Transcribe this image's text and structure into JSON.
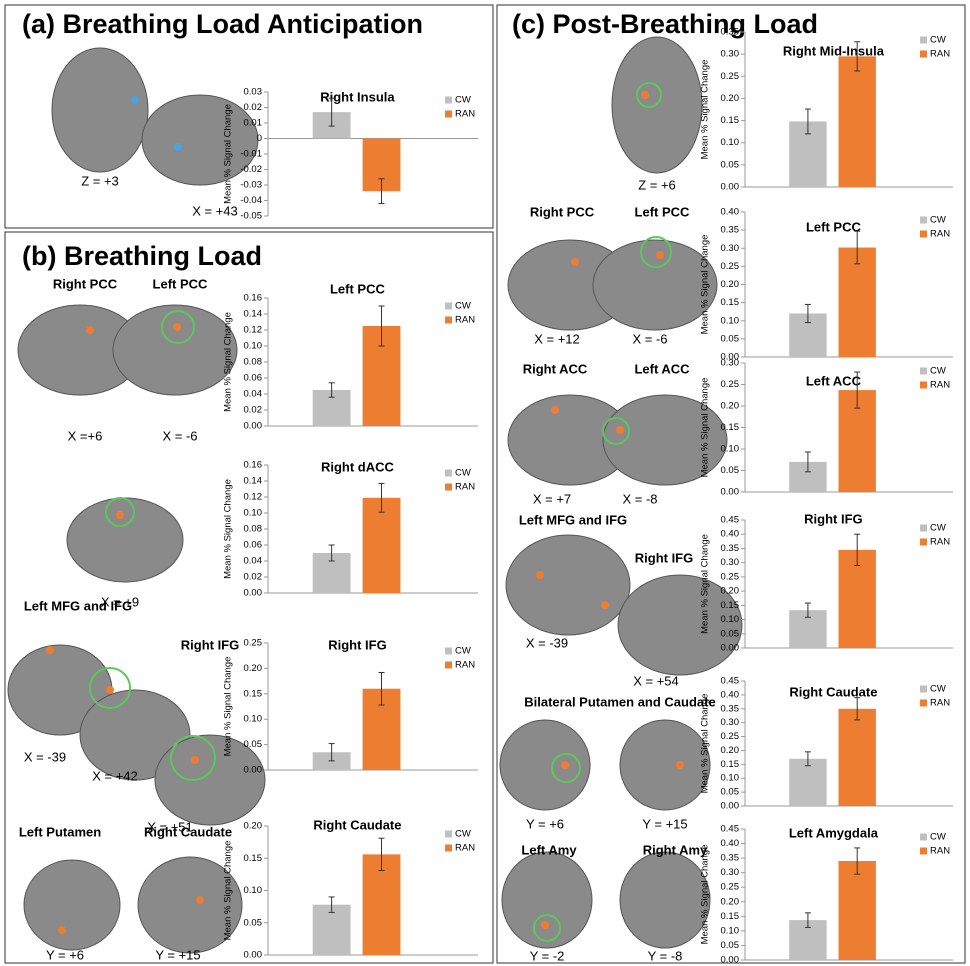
{
  "panels": [
    {
      "title": "(a) Breathing Load Anticipation",
      "image_labels": [
        "Z = +3",
        "X = +43"
      ]
    },
    {
      "title": "(b) Breathing Load",
      "image_labels": [
        "Right PCC",
        "Left PCC",
        "X =+6",
        "X = -6",
        "X = +9",
        "Left MFG and IFG",
        "Right IFG",
        "X = -39",
        "X = +42",
        "X = +51",
        "Left Putamen",
        "Right Caudate",
        "Y = +6",
        "Y = +15"
      ]
    },
    {
      "title": "(c) Post-Breathing Load",
      "image_labels": [
        "Z = +6",
        "Right PCC",
        "Left PCC",
        "X = +12",
        "X = -6",
        "Right ACC",
        "Left ACC",
        "X = +7",
        "X = -8",
        "Left MFG and IFG",
        "Right IFG",
        "X = -39",
        "X = +54",
        "Bilateral Putamen and Caudate",
        "Y = +6",
        "Y = +15",
        "Left Amy",
        "Right Amy",
        "Y = -2",
        "Y = -8"
      ]
    }
  ],
  "chart_data": [
    {
      "type": "bar",
      "title": "Right Insula",
      "ylabel": "Mean % Signal Change",
      "ylim": [
        -0.05,
        0.03
      ],
      "yticks": [
        -0.05,
        -0.04,
        -0.03,
        -0.02,
        -0.01,
        0,
        0.01,
        0.02,
        0.03
      ],
      "series": [
        {
          "name": "CW",
          "color": "#bfbfbf",
          "values": [
            0.017
          ],
          "errors": [
            0.009
          ]
        },
        {
          "name": "RAN",
          "color": "#ed7d31",
          "values": [
            -0.034
          ],
          "errors": [
            0.008
          ]
        }
      ]
    },
    {
      "type": "bar",
      "title": "Left PCC",
      "ylabel": "Mean % Signal Change",
      "ylim": [
        0,
        0.16
      ],
      "yticks": [
        {
          "value": 0,
          "label": "0.00"
        },
        0.02,
        0.04,
        0.06,
        0.08,
        {
          "value": 0.1,
          "label": "0.10"
        },
        0.12,
        0.14,
        0.16
      ],
      "series": [
        {
          "name": "CW",
          "color": "#bfbfbf",
          "values": [
            0.045
          ],
          "errors": [
            0.009
          ]
        },
        {
          "name": "RAN",
          "color": "#ed7d31",
          "values": [
            0.125
          ],
          "errors": [
            0.025
          ]
        }
      ]
    },
    {
      "type": "bar",
      "title": "Right dACC",
      "ylabel": "Mean % Signal Change",
      "ylim": [
        0,
        0.16
      ],
      "yticks": [
        {
          "value": 0,
          "label": "0.00"
        },
        0.02,
        0.04,
        0.06,
        0.08,
        {
          "value": 0.1,
          "label": "0.10"
        },
        0.12,
        0.14,
        0.16
      ],
      "series": [
        {
          "name": "CW",
          "color": "#bfbfbf",
          "values": [
            0.05
          ],
          "errors": [
            0.01
          ]
        },
        {
          "name": "RAN",
          "color": "#ed7d31",
          "values": [
            0.119
          ],
          "errors": [
            0.018
          ]
        }
      ]
    },
    {
      "type": "bar",
      "title": "Right IFG",
      "ylabel": "Mean % Signal Change",
      "ylim": [
        0,
        0.25
      ],
      "yticks": [
        {
          "value": 0,
          "label": "0.00"
        },
        0.05,
        {
          "value": 0.1,
          "label": "0.10"
        },
        0.15,
        {
          "value": 0.2,
          "label": "0.20"
        },
        0.25
      ],
      "series": [
        {
          "name": "CW",
          "color": "#bfbfbf",
          "values": [
            0.035
          ],
          "errors": [
            0.017
          ]
        },
        {
          "name": "RAN",
          "color": "#ed7d31",
          "values": [
            0.16
          ],
          "errors": [
            0.032
          ]
        }
      ]
    },
    {
      "type": "bar",
      "title": "Right Caudate",
      "ylabel": "Mean % Signal Change",
      "ylim": [
        0,
        0.2
      ],
      "yticks": [
        {
          "value": 0,
          "label": "0.00"
        },
        0.05,
        {
          "value": 0.1,
          "label": "0.10"
        },
        0.15,
        {
          "value": 0.2,
          "label": "0.20"
        }
      ],
      "series": [
        {
          "name": "CW",
          "color": "#bfbfbf",
          "values": [
            0.078
          ],
          "errors": [
            0.012
          ]
        },
        {
          "name": "RAN",
          "color": "#ed7d31",
          "values": [
            0.156
          ],
          "errors": [
            0.025
          ]
        }
      ]
    },
    {
      "type": "bar",
      "title": "Right Mid-Insula",
      "ylabel": "Mean % Signal Change",
      "ylim": [
        0,
        0.35
      ],
      "yticks": [
        {
          "value": 0,
          "label": "0.00"
        },
        0.05,
        {
          "value": 0.1,
          "label": "0.10"
        },
        0.15,
        {
          "value": 0.2,
          "label": "0.20"
        },
        0.25,
        {
          "value": 0.3,
          "label": "0.30"
        },
        0.35
      ],
      "series": [
        {
          "name": "CW",
          "color": "#bfbfbf",
          "values": [
            0.148
          ],
          "errors": [
            0.028
          ]
        },
        {
          "name": "RAN",
          "color": "#ed7d31",
          "values": [
            0.295
          ],
          "errors": [
            0.033
          ]
        }
      ]
    },
    {
      "type": "bar",
      "title": "Left PCC",
      "ylabel": "Mean % Signal Change",
      "ylim": [
        0,
        0.4
      ],
      "yticks": [
        {
          "value": 0,
          "label": "0.00"
        },
        0.05,
        {
          "value": 0.1,
          "label": "0.10"
        },
        0.15,
        {
          "value": 0.2,
          "label": "0.20"
        },
        0.25,
        {
          "value": 0.3,
          "label": "0.30"
        },
        0.35,
        {
          "value": 0.4,
          "label": "0.40"
        }
      ],
      "series": [
        {
          "name": "CW",
          "color": "#bfbfbf",
          "values": [
            0.12
          ],
          "errors": [
            0.025
          ]
        },
        {
          "name": "RAN",
          "color": "#ed7d31",
          "values": [
            0.302
          ],
          "errors": [
            0.045
          ]
        }
      ]
    },
    {
      "type": "bar",
      "title": "Left ACC",
      "ylabel": "Mean % Signal Change",
      "ylim": [
        0,
        0.3
      ],
      "yticks": [
        {
          "value": 0,
          "label": "0.00"
        },
        0.05,
        {
          "value": 0.1,
          "label": "0.10"
        },
        0.15,
        {
          "value": 0.2,
          "label": "0.20"
        },
        0.25,
        {
          "value": 0.3,
          "label": "0.30"
        }
      ],
      "series": [
        {
          "name": "CW",
          "color": "#bfbfbf",
          "values": [
            0.07
          ],
          "errors": [
            0.023
          ]
        },
        {
          "name": "RAN",
          "color": "#ed7d31",
          "values": [
            0.237
          ],
          "errors": [
            0.042
          ]
        }
      ]
    },
    {
      "type": "bar",
      "title": "Right IFG",
      "ylabel": "Mean % Signal Change",
      "ylim": [
        0,
        0.45
      ],
      "yticks": [
        {
          "value": 0,
          "label": "0.00"
        },
        0.05,
        {
          "value": 0.1,
          "label": "0.10"
        },
        0.15,
        {
          "value": 0.2,
          "label": "0.20"
        },
        0.25,
        {
          "value": 0.3,
          "label": "0.30"
        },
        0.35,
        {
          "value": 0.4,
          "label": "0.40"
        },
        0.45
      ],
      "series": [
        {
          "name": "CW",
          "color": "#bfbfbf",
          "values": [
            0.133
          ],
          "errors": [
            0.025
          ]
        },
        {
          "name": "RAN",
          "color": "#ed7d31",
          "values": [
            0.345
          ],
          "errors": [
            0.055
          ]
        }
      ]
    },
    {
      "type": "bar",
      "title": "Right Caudate",
      "ylabel": "Mean % Signal Change",
      "ylim": [
        0,
        0.45
      ],
      "yticks": [
        {
          "value": 0,
          "label": "0.00"
        },
        0.05,
        {
          "value": 0.1,
          "label": "0.10"
        },
        0.15,
        {
          "value": 0.2,
          "label": "0.20"
        },
        0.25,
        {
          "value": 0.3,
          "label": "0.30"
        },
        0.35,
        {
          "value": 0.4,
          "label": "0.40"
        },
        0.45
      ],
      "series": [
        {
          "name": "CW",
          "color": "#bfbfbf",
          "values": [
            0.17
          ],
          "errors": [
            0.025
          ]
        },
        {
          "name": "RAN",
          "color": "#ed7d31",
          "values": [
            0.35
          ],
          "errors": [
            0.04
          ]
        }
      ]
    },
    {
      "type": "bar",
      "title": "Left Amygdala",
      "ylabel": "Mean % Signal Change",
      "ylim": [
        0,
        0.45
      ],
      "yticks": [
        {
          "value": 0,
          "label": "0.00"
        },
        0.05,
        {
          "value": 0.1,
          "label": "0.10"
        },
        0.15,
        {
          "value": 0.2,
          "label": "0.20"
        },
        0.25,
        {
          "value": 0.3,
          "label": "0.30"
        },
        0.35,
        {
          "value": 0.4,
          "label": "0.40"
        },
        0.45
      ],
      "series": [
        {
          "name": "CW",
          "color": "#bfbfbf",
          "values": [
            0.137
          ],
          "errors": [
            0.025
          ]
        },
        {
          "name": "RAN",
          "color": "#ed7d31",
          "values": [
            0.34
          ],
          "errors": [
            0.045
          ]
        }
      ]
    }
  ]
}
